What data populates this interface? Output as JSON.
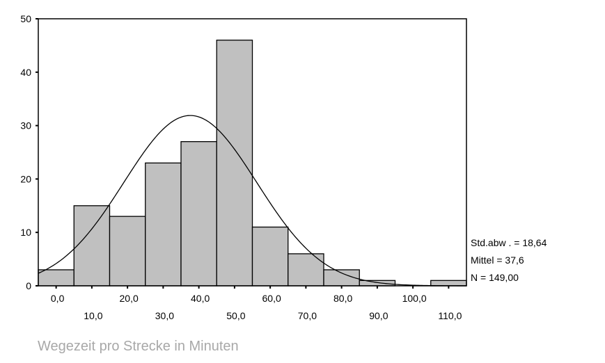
{
  "chart_data": {
    "type": "bar",
    "subtype": "histogram",
    "bin_centers": [
      0,
      10,
      20,
      30,
      40,
      50,
      60,
      70,
      80,
      90,
      100,
      110
    ],
    "values": [
      3,
      15,
      13,
      23,
      27,
      46,
      11,
      6,
      3,
      1,
      0,
      1
    ],
    "xticks_lower": [
      "0,0",
      "20,0",
      "40,0",
      "60,0",
      "80,0",
      "100,0"
    ],
    "xticks_upper": [
      "10,0",
      "30,0",
      "50,0",
      "70,0",
      "90,0",
      "110,0"
    ],
    "yticks": [
      0,
      10,
      20,
      30,
      40,
      50
    ],
    "ylim": [
      0,
      50
    ],
    "xlim": [
      -5,
      115
    ],
    "xlabel": "Wegezeit pro Strecke in Minuten",
    "normal_curve": {
      "mean": 37.6,
      "sd": 18.64,
      "n": 149,
      "bin_width": 10
    },
    "stats": {
      "sd_label": "Std.abw . = 18,64",
      "mean_label": "Mittel = 37,6",
      "n_label": "N = 149,00"
    },
    "colors": {
      "bar_fill": "#c0c0c0",
      "bar_stroke": "#000000",
      "xlabel_color": "#a8a8a8"
    }
  }
}
